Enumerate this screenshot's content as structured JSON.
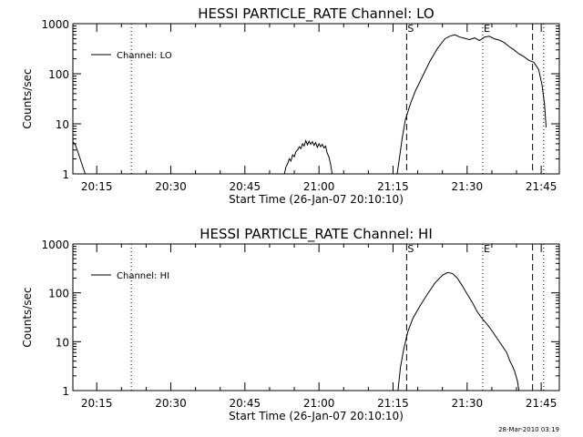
{
  "chart_data": [
    {
      "type": "line",
      "title": "HESSI PARTICLE_RATE Channel: LO",
      "xlabel": "Start Time (26-Jan-07 20:10:10)",
      "ylabel": "Counts/sec",
      "y_scale": "log",
      "ylim": [
        1,
        1000
      ],
      "xlim": [
        "20:10:10",
        "21:48:40"
      ],
      "x_ticks": [
        "20:15",
        "20:30",
        "20:45",
        "21:00",
        "21:15",
        "21:30",
        "21:45"
      ],
      "y_ticks": [
        "1",
        "10",
        "100",
        "1000"
      ],
      "legend": "top-left",
      "grid": false,
      "markers": [
        {
          "time": "21:17:45",
          "label": "S",
          "style": "dashed"
        },
        {
          "time": "21:33:10",
          "label": "E",
          "style": "dotted"
        }
      ],
      "vlines": [
        {
          "time": "20:22:00",
          "style": "dotted"
        },
        {
          "time": "21:43:15",
          "style": "dashed"
        },
        {
          "time": "21:45:30",
          "style": "dotted"
        }
      ],
      "series": [
        {
          "name": "Channel: LO",
          "points": [
            [
              "20:10:10",
              4.4
            ],
            [
              "20:10:40",
              3.8
            ],
            [
              "20:11:20",
              2.5
            ],
            [
              "20:12:10",
              1.4
            ],
            [
              "20:12:40",
              1
            ],
            [
              "20:53:00",
              1
            ],
            [
              "20:53:20",
              1.4
            ],
            [
              "20:53:40",
              1.6
            ],
            [
              "20:54:00",
              2.0
            ],
            [
              "20:54:20",
              1.8
            ],
            [
              "20:54:40",
              2.4
            ],
            [
              "20:55:00",
              2.2
            ],
            [
              "20:55:20",
              2.8
            ],
            [
              "20:55:40",
              3.0
            ],
            [
              "20:56:00",
              3.5
            ],
            [
              "20:56:20",
              3.2
            ],
            [
              "20:56:40",
              4.0
            ],
            [
              "20:57:00",
              3.6
            ],
            [
              "20:57:20",
              4.6
            ],
            [
              "20:57:40",
              3.8
            ],
            [
              "20:58:00",
              4.5
            ],
            [
              "20:58:20",
              3.9
            ],
            [
              "20:58:40",
              4.4
            ],
            [
              "20:59:00",
              3.7
            ],
            [
              "20:59:20",
              4.2
            ],
            [
              "20:59:40",
              3.4
            ],
            [
              "21:00:00",
              4.0
            ],
            [
              "21:00:20",
              3.5
            ],
            [
              "21:00:40",
              3.9
            ],
            [
              "21:01:00",
              3.3
            ],
            [
              "21:01:20",
              3.6
            ],
            [
              "21:01:40",
              2.6
            ],
            [
              "21:02:00",
              2.2
            ],
            [
              "21:02:20",
              1.6
            ],
            [
              "21:02:40",
              1
            ],
            [
              "21:15:50",
              1
            ],
            [
              "21:16:20",
              2.2
            ],
            [
              "21:16:50",
              5
            ],
            [
              "21:17:30",
              12
            ],
            [
              "21:18:30",
              25
            ],
            [
              "21:19:30",
              45
            ],
            [
              "21:21:00",
              90
            ],
            [
              "21:22:30",
              180
            ],
            [
              "21:24:00",
              320
            ],
            [
              "21:25:30",
              500
            ],
            [
              "21:26:30",
              560
            ],
            [
              "21:27:30",
              600
            ],
            [
              "21:28:30",
              540
            ],
            [
              "21:29:30",
              510
            ],
            [
              "21:30:30",
              480
            ],
            [
              "21:31:30",
              520
            ],
            [
              "21:32:30",
              460
            ],
            [
              "21:33:30",
              540
            ],
            [
              "21:34:30",
              560
            ],
            [
              "21:35:30",
              500
            ],
            [
              "21:36:30",
              470
            ],
            [
              "21:37:30",
              420
            ],
            [
              "21:38:30",
              350
            ],
            [
              "21:39:30",
              300
            ],
            [
              "21:40:30",
              250
            ],
            [
              "21:41:30",
              220
            ],
            [
              "21:42:30",
              185
            ],
            [
              "21:43:30",
              170
            ],
            [
              "21:44:30",
              120
            ],
            [
              "21:45:10",
              60
            ],
            [
              "21:45:40",
              25
            ],
            [
              "21:46:00",
              8.5
            ]
          ]
        }
      ]
    },
    {
      "type": "line",
      "title": "HESSI PARTICLE_RATE Channel: HI",
      "xlabel": "Start Time (26-Jan-07 20:10:10)",
      "ylabel": "Counts/sec",
      "y_scale": "log",
      "ylim": [
        1,
        1000
      ],
      "xlim": [
        "20:10:10",
        "21:48:40"
      ],
      "x_ticks": [
        "20:15",
        "20:30",
        "20:45",
        "21:00",
        "21:15",
        "21:30",
        "21:45"
      ],
      "y_ticks": [
        "1",
        "10",
        "100",
        "1000"
      ],
      "legend": "top-left",
      "grid": false,
      "markers": [
        {
          "time": "21:17:45",
          "label": "S",
          "style": "dashed"
        },
        {
          "time": "21:33:10",
          "label": "E",
          "style": "dotted"
        }
      ],
      "vlines": [
        {
          "time": "20:22:00",
          "style": "dotted"
        },
        {
          "time": "21:43:15",
          "style": "dashed"
        },
        {
          "time": "21:45:30",
          "style": "dotted"
        }
      ],
      "series": [
        {
          "name": "Channel: HI",
          "points": [
            [
              "21:16:00",
              1
            ],
            [
              "21:16:30",
              3
            ],
            [
              "21:17:10",
              7
            ],
            [
              "21:18:00",
              16
            ],
            [
              "21:19:00",
              30
            ],
            [
              "21:20:30",
              55
            ],
            [
              "21:22:00",
              95
            ],
            [
              "21:23:30",
              160
            ],
            [
              "21:25:00",
              230
            ],
            [
              "21:26:00",
              260
            ],
            [
              "21:27:00",
              250
            ],
            [
              "21:28:00",
              200
            ],
            [
              "21:29:00",
              140
            ],
            [
              "21:30:00",
              95
            ],
            [
              "21:31:00",
              65
            ],
            [
              "21:32:00",
              42
            ],
            [
              "21:33:00",
              30
            ],
            [
              "21:34:00",
              23
            ],
            [
              "21:35:00",
              17
            ],
            [
              "21:36:00",
              12
            ],
            [
              "21:37:00",
              8.5
            ],
            [
              "21:38:00",
              6
            ],
            [
              "21:38:40",
              4
            ],
            [
              "21:39:10",
              3.2
            ],
            [
              "21:39:40",
              2.4
            ],
            [
              "21:40:10",
              1.6
            ],
            [
              "21:40:30",
              1
            ]
          ]
        }
      ]
    }
  ],
  "footer": {
    "datestamp": "28-Mar-2010 03:19"
  }
}
